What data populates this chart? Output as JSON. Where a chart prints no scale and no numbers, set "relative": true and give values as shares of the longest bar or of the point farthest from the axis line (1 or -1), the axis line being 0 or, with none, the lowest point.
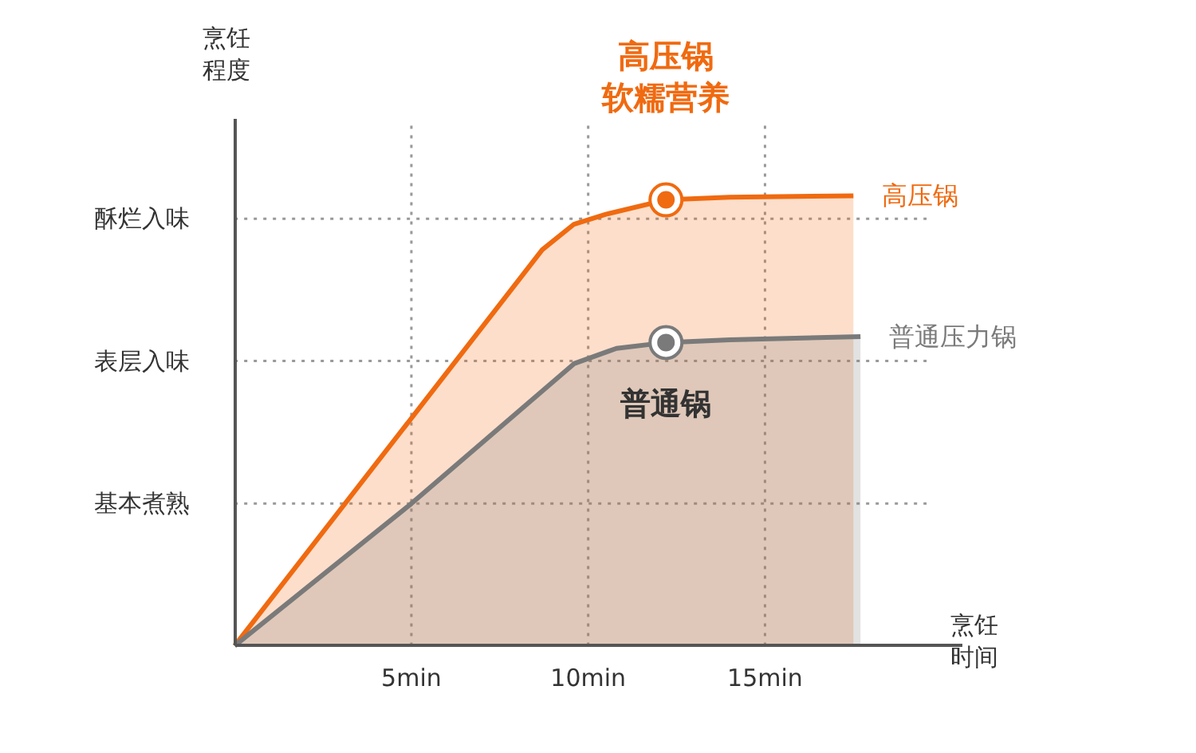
{
  "chart_data": {
    "type": "area",
    "relative": true,
    "xlabel": "烹饪时间",
    "ylabel": "烹饪程度",
    "xlim": [
      0,
      20.6
    ],
    "xticks": [
      {
        "value": 5,
        "label": "5min"
      },
      {
        "value": 10,
        "label": "10min"
      },
      {
        "value": 15,
        "label": "15min"
      }
    ],
    "grid": "x",
    "line_style": "solid",
    "ref_lines": [
      {
        "axis": "y",
        "value": 0.316,
        "label": "基本煮熟",
        "line_style": "dotted"
      },
      {
        "axis": "y",
        "value": 0.633,
        "label": "表层入味",
        "line_style": "dotted"
      },
      {
        "axis": "y",
        "value": 0.949,
        "label": "酥烂入味",
        "line_style": "dotted"
      }
    ],
    "series": [
      {
        "name": "高压锅",
        "color": "#f06a10",
        "x": [
          0,
          8.7,
          9.6,
          10.5,
          12.2,
          14,
          17.5
        ],
        "values": [
          0,
          0.88,
          0.937,
          0.959,
          0.991,
          0.997,
          1
        ]
      },
      {
        "name": "普通压力锅",
        "color": "#7a7a7a",
        "x": [
          0,
          5,
          9.6,
          10.8,
          12.2,
          14,
          17.7
        ],
        "values": [
          0,
          0.316,
          0.627,
          0.661,
          0.674,
          0.68,
          0.687
        ]
      },
      {
        "type": "scatter",
        "color": "#f06a10",
        "x": [
          12.2
        ],
        "values": [
          0.991
        ]
      },
      {
        "type": "scatter",
        "color": "#7a7a7a",
        "x": [
          12.2
        ],
        "values": [
          0.674
        ]
      }
    ],
    "annotations": [
      "高压锅",
      "软糯营养",
      "普通锅"
    ]
  }
}
